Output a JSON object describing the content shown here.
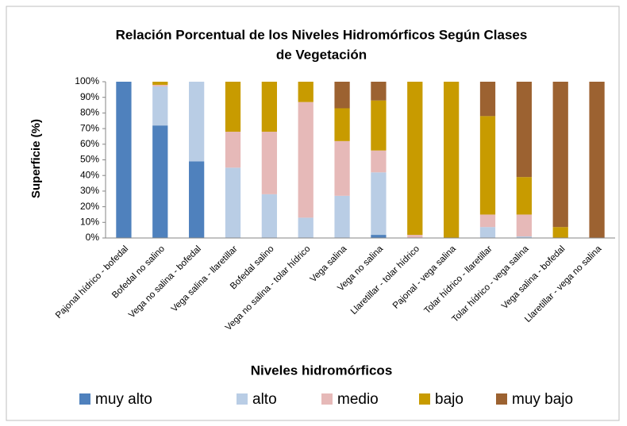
{
  "chart_data": {
    "type": "stacked_bar",
    "title": "Relación Porcentual de los Niveles Hidromórficos Según Clases",
    "subtitle": "de Vegetación",
    "x_label": "Niveles hidromórficos",
    "y_label": "Superficie (%)",
    "categories": [
      "Pajonal hídrico - bofedal",
      "Bofedal no salino",
      "Vega no salina - bofedal",
      "Vega salina - llaretillar",
      "Bofedal salino",
      "Vega no salina - tolar hídrico",
      "Vega salina",
      "Vega no salina",
      "Llaretillar - tolar hídrico",
      "Pajonal - vega salina",
      "Tolar hídrico - llaretillar",
      "Tolar hídrico - vega salina",
      "Vega salina - bofedal",
      "Llaretillar - vega no salina"
    ],
    "series": [
      {
        "name": "muy alto",
        "color": "#4f81bd",
        "values": [
          100,
          72,
          49,
          0,
          0,
          0,
          0,
          2,
          0,
          0,
          0,
          0,
          0,
          0
        ]
      },
      {
        "name": "alto",
        "color": "#b9cde5",
        "values": [
          0,
          25,
          51,
          45,
          28,
          13,
          27,
          40,
          0,
          0,
          7,
          1,
          0,
          0
        ]
      },
      {
        "name": "medio",
        "color": "#e6b9b8",
        "values": [
          0,
          1,
          0,
          23,
          40,
          74,
          35,
          14,
          2,
          0,
          8,
          14,
          0,
          0
        ]
      },
      {
        "name": "bajo",
        "color": "#c89b00",
        "values": [
          0,
          2,
          0,
          32,
          32,
          13,
          21,
          32,
          98,
          100,
          63,
          24,
          7,
          0
        ]
      },
      {
        "name": "muy bajo",
        "color": "#9c6231",
        "values": [
          0,
          0,
          0,
          0,
          0,
          0,
          17,
          12,
          0,
          0,
          22,
          61,
          93,
          100
        ]
      }
    ],
    "ylim": [
      0,
      100
    ],
    "yticks": [
      {
        "value": 0,
        "label": "0%"
      },
      {
        "value": 10,
        "label": "10%"
      },
      {
        "value": 20,
        "label": "20%"
      },
      {
        "value": 30,
        "label": "30%"
      },
      {
        "value": 40,
        "label": "40%"
      },
      {
        "value": 50,
        "label": "50%"
      },
      {
        "value": 60,
        "label": "60%"
      },
      {
        "value": 70,
        "label": "70%"
      },
      {
        "value": 80,
        "label": "80%"
      },
      {
        "value": 90,
        "label": "90%"
      },
      {
        "value": 100,
        "label": "100%"
      }
    ],
    "grid": false,
    "legend": "bottom"
  }
}
